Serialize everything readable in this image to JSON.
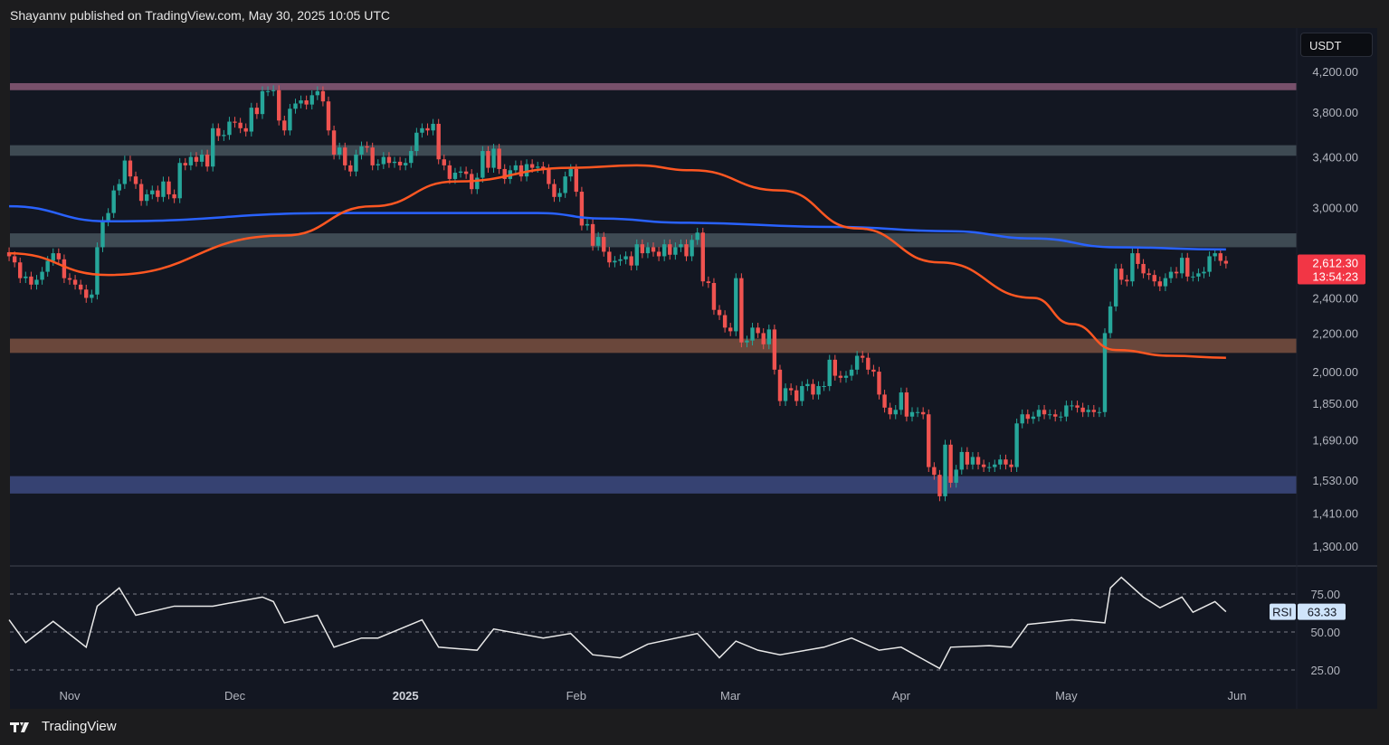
{
  "header": {
    "published_text": "Shayannv published on TradingView.com, May 30, 2025 10:05 UTC"
  },
  "footer": {
    "brand": "TradingView"
  },
  "chart_data": {
    "type": "candlestick",
    "currency": "USDT",
    "y_scale": "log",
    "ylim": [
      1240,
      4500
    ],
    "start_date": "2024-10-21",
    "interval": "1D",
    "closes": [
      2660,
      2620,
      2520,
      2530,
      2480,
      2510,
      2560,
      2630,
      2680,
      2640,
      2520,
      2510,
      2480,
      2450,
      2400,
      2420,
      2720,
      2900,
      2960,
      3130,
      3180,
      3370,
      3240,
      3180,
      3050,
      3100,
      3130,
      3080,
      3200,
      3100,
      3070,
      3350,
      3330,
      3400,
      3360,
      3420,
      3320,
      3650,
      3580,
      3590,
      3710,
      3700,
      3650,
      3620,
      3840,
      3780,
      4000,
      4000,
      4010,
      3720,
      3630,
      3830,
      3880,
      3910,
      3870,
      3960,
      4000,
      3900,
      3630,
      3420,
      3480,
      3330,
      3280,
      3420,
      3490,
      3480,
      3330,
      3340,
      3400,
      3350,
      3360,
      3330,
      3350,
      3450,
      3610,
      3650,
      3630,
      3690,
      3380,
      3330,
      3220,
      3270,
      3280,
      3260,
      3140,
      3230,
      3450,
      3310,
      3470,
      3300,
      3220,
      3290,
      3330,
      3240,
      3340,
      3310,
      3320,
      3300,
      3180,
      3080,
      3110,
      3240,
      3300,
      3120,
      2870,
      2880,
      2730,
      2790,
      2690,
      2620,
      2630,
      2640,
      2660,
      2600,
      2740,
      2680,
      2720,
      2690,
      2660,
      2740,
      2670,
      2720,
      2740,
      2660,
      2770,
      2820,
      2500,
      2490,
      2330,
      2300,
      2230,
      2210,
      2520,
      2150,
      2160,
      2230,
      2200,
      2140,
      2220,
      2010,
      1860,
      1920,
      1910,
      1860,
      1930,
      1940,
      1890,
      1930,
      1930,
      2060,
      1980,
      1970,
      1980,
      2010,
      2080,
      2070,
      2010,
      2000,
      1890,
      1830,
      1800,
      1820,
      1900,
      1790,
      1810,
      1810,
      1800,
      1580,
      1550,
      1470,
      1670,
      1520,
      1570,
      1640,
      1590,
      1620,
      1590,
      1580,
      1580,
      1590,
      1610,
      1590,
      1580,
      1760,
      1800,
      1780,
      1790,
      1820,
      1800,
      1800,
      1790,
      1790,
      1840,
      1840,
      1830,
      1810,
      1820,
      1810,
      1810,
      2200,
      2350,
      2580,
      2510,
      2500,
      2680,
      2610,
      2550,
      2540,
      2500,
      2470,
      2520,
      2560,
      2550,
      2650,
      2530,
      2530,
      2550,
      2560,
      2660,
      2680,
      2630,
      2612.3
    ],
    "last_price": "2,612.30",
    "countdown": "13:54:23",
    "moving_averages": [
      {
        "color": "#2962ff",
        "points": [
          [
            "2024-10-21",
            3010
          ],
          [
            "2024-11-08",
            2900
          ],
          [
            "2024-12-20",
            2960
          ],
          [
            "2025-01-25",
            2960
          ],
          [
            "2025-02-06",
            2920
          ],
          [
            "2025-02-20",
            2890
          ],
          [
            "2025-03-20",
            2860
          ],
          [
            "2025-04-10",
            2830
          ],
          [
            "2025-04-25",
            2780
          ],
          [
            "2025-05-10",
            2720
          ],
          [
            "2025-05-30",
            2705
          ]
        ]
      },
      {
        "color": "#ff5722",
        "points": [
          [
            "2024-10-21",
            2680
          ],
          [
            "2024-11-08",
            2540
          ],
          [
            "2024-12-10",
            2800
          ],
          [
            "2024-12-26",
            3010
          ],
          [
            "2025-01-10",
            3200
          ],
          [
            "2025-01-31",
            3310
          ],
          [
            "2025-02-12",
            3330
          ],
          [
            "2025-02-22",
            3290
          ],
          [
            "2025-03-10",
            3130
          ],
          [
            "2025-03-24",
            2850
          ],
          [
            "2025-04-08",
            2620
          ],
          [
            "2025-04-25",
            2400
          ],
          [
            "2025-05-02",
            2250
          ],
          [
            "2025-05-10",
            2110
          ],
          [
            "2025-05-20",
            2080
          ],
          [
            "2025-05-30",
            2070
          ]
        ]
      }
    ],
    "zones": [
      {
        "range": [
          4010,
          4080
        ],
        "color": "#8a5a78"
      },
      {
        "range": [
          3410,
          3500
        ],
        "color": "#46535c"
      },
      {
        "range": [
          2720,
          2815
        ],
        "color": "#46535c"
      },
      {
        "range": [
          2095,
          2170
        ],
        "color": "#7a5040"
      },
      {
        "range": [
          1480,
          1545
        ],
        "color": "#3d4a80"
      }
    ],
    "y_ticks": [
      "4,200.00",
      "3,800.00",
      "3,400.00",
      "3,000.00",
      "2,400.00",
      "2,200.00",
      "2,000.00",
      "1,850.00",
      "1,690.00",
      "1,530.00",
      "1,410.00",
      "1,300.00"
    ],
    "x_ticks": [
      {
        "label": "Nov",
        "date": "2024-11-01"
      },
      {
        "label": "Dec",
        "date": "2024-12-01"
      },
      {
        "label": "2025",
        "date": "2025-01-01",
        "bold": true
      },
      {
        "label": "Feb",
        "date": "2025-02-01"
      },
      {
        "label": "Mar",
        "date": "2025-03-01"
      },
      {
        "label": "Apr",
        "date": "2025-04-01"
      },
      {
        "label": "May",
        "date": "2025-05-01"
      },
      {
        "label": "Jun",
        "date": "2025-06-01"
      }
    ],
    "rsi": {
      "label": "RSI",
      "value": "63.33",
      "levels": [
        75,
        50,
        25
      ],
      "tick_labels": [
        "75.00",
        "50.00",
        "25.00"
      ],
      "points": [
        [
          "2024-10-21",
          58
        ],
        [
          "2024-10-24",
          43
        ],
        [
          "2024-10-29",
          57
        ],
        [
          "2024-11-04",
          40
        ],
        [
          "2024-11-06",
          67
        ],
        [
          "2024-11-10",
          79
        ],
        [
          "2024-11-13",
          61
        ],
        [
          "2024-11-20",
          67
        ],
        [
          "2024-11-27",
          67
        ],
        [
          "2024-12-06",
          73
        ],
        [
          "2024-12-08",
          70
        ],
        [
          "2024-12-10",
          56
        ],
        [
          "2024-12-16",
          61
        ],
        [
          "2024-12-19",
          40
        ],
        [
          "2024-12-24",
          46
        ],
        [
          "2024-12-27",
          46
        ],
        [
          "2025-01-04",
          58
        ],
        [
          "2025-01-07",
          40
        ],
        [
          "2025-01-14",
          38
        ],
        [
          "2025-01-17",
          52
        ],
        [
          "2025-01-26",
          46
        ],
        [
          "2025-01-31",
          49
        ],
        [
          "2025-02-04",
          35
        ],
        [
          "2025-02-09",
          33
        ],
        [
          "2025-02-14",
          42
        ],
        [
          "2025-02-23",
          49
        ],
        [
          "2025-02-27",
          33
        ],
        [
          "2025-03-02",
          44
        ],
        [
          "2025-03-06",
          38
        ],
        [
          "2025-03-10",
          35
        ],
        [
          "2025-03-18",
          40
        ],
        [
          "2025-03-23",
          46
        ],
        [
          "2025-03-28",
          38
        ],
        [
          "2025-04-01",
          40
        ],
        [
          "2025-04-08",
          26
        ],
        [
          "2025-04-10",
          40
        ],
        [
          "2025-04-17",
          41
        ],
        [
          "2025-04-21",
          40
        ],
        [
          "2025-04-24",
          55
        ],
        [
          "2025-05-02",
          58
        ],
        [
          "2025-05-08",
          56
        ],
        [
          "2025-05-09",
          79
        ],
        [
          "2025-05-11",
          86
        ],
        [
          "2025-05-15",
          73
        ],
        [
          "2025-05-18",
          66
        ],
        [
          "2025-05-22",
          73
        ],
        [
          "2025-05-24",
          63
        ],
        [
          "2025-05-28",
          70
        ],
        [
          "2025-05-30",
          63.33
        ]
      ]
    },
    "colors": {
      "up": "#26a69a",
      "down": "#ef5350",
      "background": "#131722",
      "rsi_line": "#e8e8e8"
    }
  }
}
